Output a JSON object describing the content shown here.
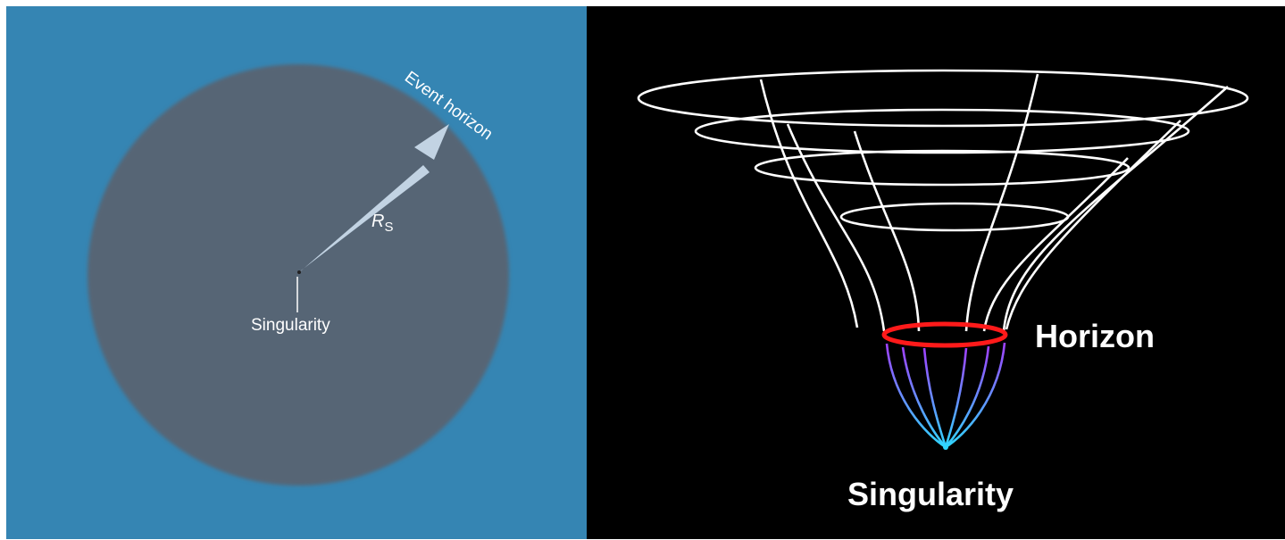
{
  "left": {
    "background": "#3585b3",
    "disc_color": "#566574",
    "arrow_color": "#c2d3e3",
    "labels": {
      "event_horizon": "Event horizon",
      "radius_symbol": "R",
      "radius_subscript": "S",
      "singularity": "Singularity"
    }
  },
  "right": {
    "background": "#000000",
    "grid_color": "#ffffff",
    "horizon_color": "#ff1a1a",
    "inner_gradient": [
      "#a040ff",
      "#2fd6ff"
    ],
    "labels": {
      "horizon": "Horizon",
      "singularity": "Singularity"
    }
  }
}
